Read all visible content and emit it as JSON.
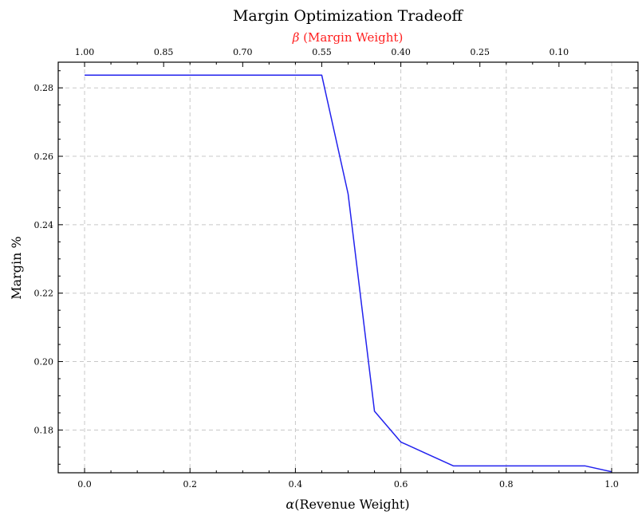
{
  "chart_data": {
    "type": "line",
    "title": "Margin Optimization Tradeoff",
    "xlabel_symbol": "α",
    "xlabel_text": "(Revenue Weight)",
    "ylabel": "Margin %",
    "top_xlabel_symbol": "β",
    "top_xlabel_text": " (Margin Weight)",
    "top_xlabel_color": "#ff2020",
    "line_color": "#2222ee",
    "grid": true,
    "xlim": [
      -0.05,
      1.05
    ],
    "ylim": [
      0.1675,
      0.2875
    ],
    "x_ticks": [
      0.0,
      0.2,
      0.4,
      0.6,
      0.8,
      1.0
    ],
    "x_tick_labels": [
      "0.0",
      "0.2",
      "0.4",
      "0.6",
      "0.8",
      "1.0"
    ],
    "y_ticks": [
      0.18,
      0.2,
      0.22,
      0.24,
      0.26,
      0.28
    ],
    "y_tick_labels": [
      "0.18",
      "0.20",
      "0.22",
      "0.24",
      "0.26",
      "0.28"
    ],
    "top_ticks_alpha": [
      0.0,
      0.15,
      0.3,
      0.45,
      0.6,
      0.75,
      0.9
    ],
    "top_tick_labels": [
      "1.00",
      "0.85",
      "0.70",
      "0.55",
      "0.40",
      "0.25",
      "0.10"
    ],
    "series": [
      {
        "x": [
          0.0,
          0.05,
          0.1,
          0.15,
          0.2,
          0.25,
          0.3,
          0.35,
          0.4,
          0.45,
          0.5,
          0.55,
          0.6,
          0.65,
          0.7,
          0.75,
          0.8,
          0.85,
          0.9,
          0.95,
          1.0
        ],
        "values": [
          0.2837,
          0.2837,
          0.2837,
          0.2837,
          0.2837,
          0.2837,
          0.2837,
          0.2837,
          0.2837,
          0.2837,
          0.249,
          0.1855,
          0.1765,
          0.173,
          0.1695,
          0.1695,
          0.1695,
          0.1695,
          0.1695,
          0.1695,
          0.1678
        ]
      }
    ]
  }
}
